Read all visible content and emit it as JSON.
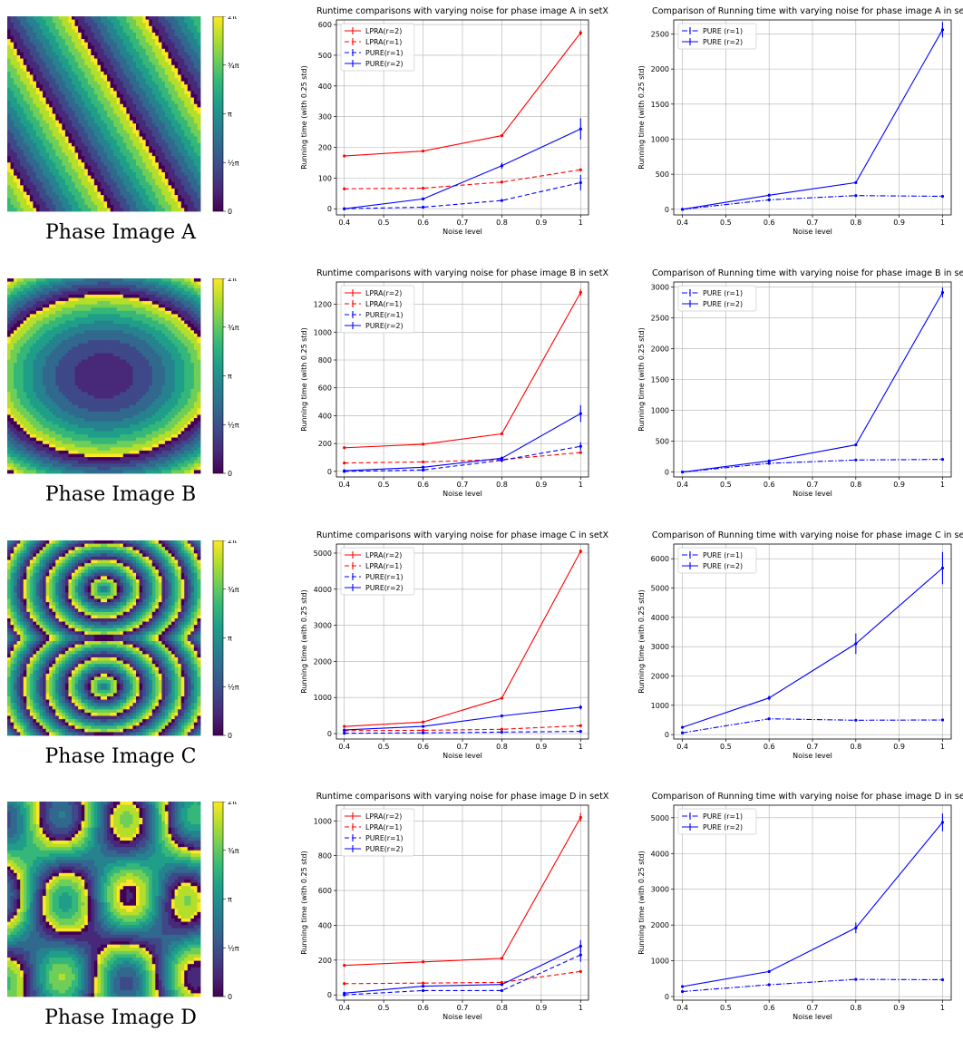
{
  "colorbar_ticks": [
    "0",
    "½π",
    "π",
    "¾π",
    "2π"
  ],
  "colors": {
    "red": "#ff0000",
    "blue": "#0000ff",
    "grid": "#b0b0b0",
    "viridis": [
      "#440154",
      "#482878",
      "#3e4989",
      "#31688e",
      "#26828e",
      "#1f9e89",
      "#35b779",
      "#6ece58",
      "#b5de2b",
      "#fde725"
    ]
  },
  "rows": [
    {
      "caption": "Phase Image A",
      "pattern": "stripes"
    },
    {
      "caption": "Phase Image B",
      "pattern": "ellipses"
    },
    {
      "caption": "Phase Image C",
      "pattern": "double-rings"
    },
    {
      "caption": "Phase Image D",
      "pattern": "blobs"
    }
  ],
  "chart_data": [
    {
      "type": "line",
      "title": "Runtime comparisons with varying noise for phase image A in setX",
      "xlabel": "Noise level",
      "ylabel": "Running time (with 0.25 std)",
      "x": [
        0.4,
        0.6,
        0.8,
        1.0
      ],
      "xlim": [
        0.38,
        1.02
      ],
      "ylim": [
        -20,
        615
      ],
      "xticks": [
        0.4,
        0.5,
        0.6,
        0.7,
        0.8,
        0.9,
        1.0
      ],
      "yticks": [
        0,
        100,
        200,
        300,
        400,
        500,
        600
      ],
      "grid": true,
      "legend": "top-left",
      "series": [
        {
          "name": "LPRA(r=2)",
          "color": "red",
          "dash": "solid",
          "values": [
            172,
            188,
            238,
            573
          ],
          "err": [
            3,
            3,
            4,
            8
          ]
        },
        {
          "name": "LPRA(r=1)",
          "color": "red",
          "dash": "dashed",
          "values": [
            65,
            67,
            87,
            127
          ],
          "err": [
            2,
            2,
            2,
            3
          ]
        },
        {
          "name": "PURE(r=1)",
          "color": "blue",
          "dash": "dashed",
          "values": [
            0,
            5,
            27,
            85
          ],
          "err": [
            1,
            2,
            4,
            25
          ]
        },
        {
          "name": "PURE(r=2)",
          "color": "blue",
          "dash": "solid",
          "values": [
            0,
            32,
            140,
            260
          ],
          "err": [
            1,
            4,
            10,
            35
          ]
        }
      ]
    },
    {
      "type": "line",
      "title": "Comparison of Running time with varying noise for phase image A in setY",
      "xlabel": "Noise level",
      "ylabel": "Running time (with 0.25 std)",
      "x": [
        0.4,
        0.6,
        0.8,
        1.0
      ],
      "xlim": [
        0.38,
        1.02
      ],
      "ylim": [
        -80,
        2700
      ],
      "xticks": [
        0.4,
        0.5,
        0.6,
        0.7,
        0.8,
        0.9,
        1.0
      ],
      "yticks": [
        0,
        500,
        1000,
        1500,
        2000,
        2500
      ],
      "grid": true,
      "legend": "top-left",
      "series": [
        {
          "name": "PURE (r=1)",
          "color": "blue",
          "dash": "dashdot",
          "values": [
            0,
            135,
            195,
            185
          ],
          "err": [
            5,
            20,
            10,
            10
          ]
        },
        {
          "name": "PURE (r=2)",
          "color": "blue",
          "dash": "solid",
          "values": [
            0,
            200,
            380,
            2560
          ],
          "err": [
            5,
            25,
            20,
            110
          ]
        }
      ]
    },
    {
      "type": "line",
      "title": "Runtime comparisons with varying noise for phase image B in setX",
      "xlabel": "Noise level",
      "ylabel": "Running time (with 0.25 std)",
      "x": [
        0.4,
        0.6,
        0.8,
        1.0
      ],
      "xlim": [
        0.38,
        1.02
      ],
      "ylim": [
        -40,
        1360
      ],
      "xticks": [
        0.4,
        0.5,
        0.6,
        0.7,
        0.8,
        0.9,
        1.0
      ],
      "yticks": [
        0,
        200,
        400,
        600,
        800,
        1000,
        1200
      ],
      "grid": true,
      "legend": "top-left",
      "series": [
        {
          "name": "LPRA(r=2)",
          "color": "red",
          "dash": "solid",
          "values": [
            170,
            195,
            270,
            1285
          ],
          "err": [
            4,
            4,
            6,
            25
          ]
        },
        {
          "name": "LPRA(r=1)",
          "color": "red",
          "dash": "dashed",
          "values": [
            60,
            68,
            85,
            135
          ],
          "err": [
            2,
            2,
            3,
            5
          ]
        },
        {
          "name": "PURE(r=1)",
          "color": "blue",
          "dash": "dashed",
          "values": [
            0,
            10,
            80,
            180
          ],
          "err": [
            2,
            3,
            15,
            30
          ]
        },
        {
          "name": "PURE(r=2)",
          "color": "blue",
          "dash": "solid",
          "values": [
            5,
            30,
            95,
            415
          ],
          "err": [
            2,
            5,
            10,
            60
          ]
        }
      ]
    },
    {
      "type": "line",
      "title": "Comparison of Running time with varying noise for phase image B in setY",
      "xlabel": "Noise level",
      "ylabel": "Running time (with 0.25 std)",
      "x": [
        0.4,
        0.6,
        0.8,
        1.0
      ],
      "xlim": [
        0.38,
        1.02
      ],
      "ylim": [
        -80,
        3080
      ],
      "xticks": [
        0.4,
        0.5,
        0.6,
        0.7,
        0.8,
        0.9,
        1.0
      ],
      "yticks": [
        0,
        500,
        1000,
        1500,
        2000,
        2500,
        3000
      ],
      "grid": true,
      "legend": "top-left",
      "series": [
        {
          "name": "PURE (r=1)",
          "color": "blue",
          "dash": "dashdot",
          "values": [
            0,
            140,
            195,
            205
          ],
          "err": [
            5,
            20,
            10,
            10
          ]
        },
        {
          "name": "PURE (r=2)",
          "color": "blue",
          "dash": "solid",
          "values": [
            0,
            180,
            440,
            2910
          ],
          "err": [
            5,
            20,
            20,
            80
          ]
        }
      ]
    },
    {
      "type": "line",
      "title": "Runtime comparisons with varying noise for phase image C in setX",
      "xlabel": "Noise level",
      "ylabel": "Running time (with 0.25 std)",
      "x": [
        0.4,
        0.6,
        0.8,
        1.0
      ],
      "xlim": [
        0.38,
        1.02
      ],
      "ylim": [
        -150,
        5250
      ],
      "xticks": [
        0.4,
        0.5,
        0.6,
        0.7,
        0.8,
        0.9,
        1.0
      ],
      "yticks": [
        0,
        1000,
        2000,
        3000,
        4000,
        5000
      ],
      "grid": true,
      "legend": "top-left",
      "series": [
        {
          "name": "LPRA(r=2)",
          "color": "red",
          "dash": "solid",
          "values": [
            200,
            320,
            980,
            5050
          ],
          "err": [
            10,
            15,
            25,
            50
          ]
        },
        {
          "name": "LPRA(r=1)",
          "color": "red",
          "dash": "dashed",
          "values": [
            80,
            90,
            120,
            220
          ],
          "err": [
            5,
            5,
            5,
            10
          ]
        },
        {
          "name": "PURE(r=1)",
          "color": "blue",
          "dash": "dashed",
          "values": [
            10,
            20,
            40,
            60
          ],
          "err": [
            2,
            3,
            4,
            5
          ]
        },
        {
          "name": "PURE(r=2)",
          "color": "blue",
          "dash": "solid",
          "values": [
            100,
            200,
            490,
            730
          ],
          "err": [
            5,
            10,
            40,
            60
          ]
        }
      ]
    },
    {
      "type": "line",
      "title": "Comparison of Running time with varying noise for phase image C in setY",
      "xlabel": "Noise level",
      "ylabel": "Running time (with 0.25 std)",
      "x": [
        0.4,
        0.6,
        0.8,
        1.0
      ],
      "xlim": [
        0.38,
        1.02
      ],
      "ylim": [
        -150,
        6500
      ],
      "xticks": [
        0.4,
        0.5,
        0.6,
        0.7,
        0.8,
        0.9,
        1.0
      ],
      "yticks": [
        0,
        1000,
        2000,
        3000,
        4000,
        5000,
        6000
      ],
      "grid": true,
      "legend": "top-left",
      "series": [
        {
          "name": "PURE (r=1)",
          "color": "blue",
          "dash": "dashdot",
          "values": [
            60,
            540,
            490,
            500
          ],
          "err": [
            10,
            20,
            20,
            20
          ]
        },
        {
          "name": "PURE (r=2)",
          "color": "blue",
          "dash": "solid",
          "values": [
            250,
            1250,
            3100,
            5680
          ],
          "err": [
            20,
            80,
            350,
            550
          ]
        }
      ]
    },
    {
      "type": "line",
      "title": "Runtime comparisons with varying noise for phase image D in setX",
      "xlabel": "Noise level",
      "ylabel": "Running time (with 0.25 std)",
      "x": [
        0.4,
        0.6,
        0.8,
        1.0
      ],
      "xlim": [
        0.38,
        1.02
      ],
      "ylim": [
        -30,
        1090
      ],
      "xticks": [
        0.4,
        0.5,
        0.6,
        0.7,
        0.8,
        0.9,
        1.0
      ],
      "yticks": [
        0,
        200,
        400,
        600,
        800,
        1000
      ],
      "grid": true,
      "legend": "top-left",
      "series": [
        {
          "name": "LPRA(r=2)",
          "color": "red",
          "dash": "solid",
          "values": [
            170,
            190,
            210,
            1020
          ],
          "err": [
            4,
            4,
            5,
            25
          ]
        },
        {
          "name": "LPRA(r=1)",
          "color": "red",
          "dash": "dashed",
          "values": [
            65,
            68,
            72,
            135
          ],
          "err": [
            2,
            2,
            2,
            5
          ]
        },
        {
          "name": "PURE(r=1)",
          "color": "blue",
          "dash": "dashed",
          "values": [
            0,
            25,
            25,
            230
          ],
          "err": [
            2,
            3,
            4,
            40
          ]
        },
        {
          "name": "PURE(r=2)",
          "color": "blue",
          "dash": "solid",
          "values": [
            10,
            50,
            60,
            280
          ],
          "err": [
            3,
            5,
            5,
            35
          ]
        }
      ]
    },
    {
      "type": "line",
      "title": "Comparison of Running time with varying noise for phase image D in setY",
      "xlabel": "Noise level",
      "ylabel": "Running time (with 0.25 std)",
      "x": [
        0.4,
        0.6,
        0.8,
        1.0
      ],
      "xlim": [
        0.38,
        1.02
      ],
      "ylim": [
        -100,
        5350
      ],
      "xticks": [
        0.4,
        0.5,
        0.6,
        0.7,
        0.8,
        0.9,
        1.0
      ],
      "yticks": [
        0,
        1000,
        2000,
        3000,
        4000,
        5000
      ],
      "grid": true,
      "legend": "top-left",
      "series": [
        {
          "name": "PURE (r=1)",
          "color": "blue",
          "dash": "dashdot",
          "values": [
            140,
            330,
            480,
            470
          ],
          "err": [
            10,
            20,
            20,
            20
          ]
        },
        {
          "name": "PURE (r=2)",
          "color": "blue",
          "dash": "solid",
          "values": [
            280,
            700,
            1920,
            4870
          ],
          "err": [
            20,
            40,
            150,
            250
          ]
        }
      ]
    }
  ]
}
